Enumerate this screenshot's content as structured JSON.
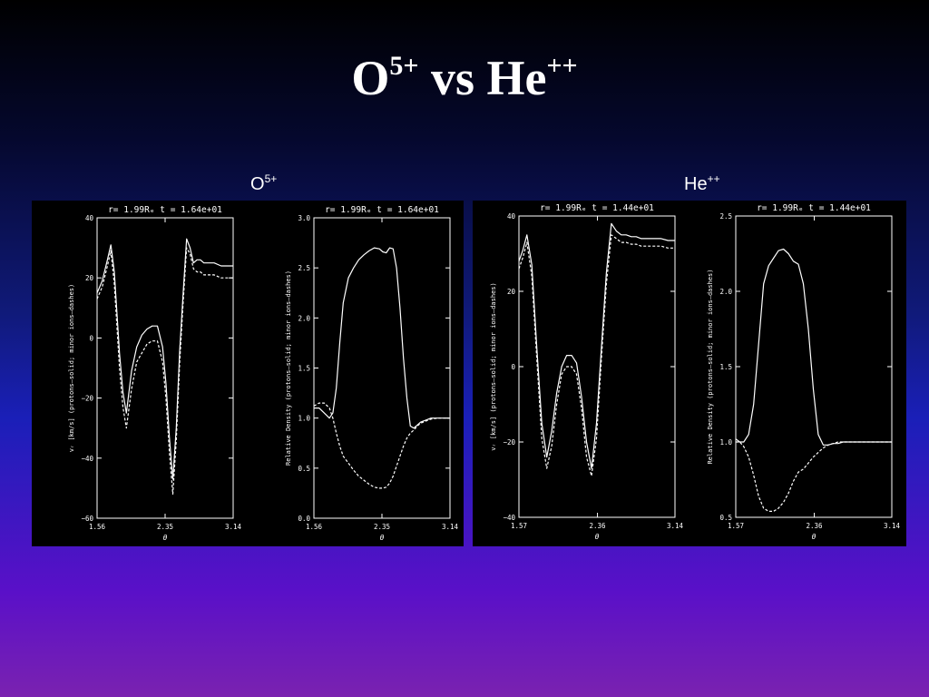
{
  "slide": {
    "title_main_1": "O",
    "title_sup_1": "5+",
    "title_mid": " vs He",
    "title_sup_2": "++"
  },
  "labels": {
    "left_base": "O",
    "left_sup": "5+",
    "right_base": "He",
    "right_sup": "++"
  },
  "colors": {
    "line": "#ffffff",
    "panel_bg": "#000000"
  },
  "chart_data": [
    {
      "type": "line",
      "title": "r=  1.99Rₑ  t = 1.64e+01",
      "xlabel": "θ",
      "ylabel": "vᵣ [km/s] (protons–solid; minor ions–dashes)",
      "xlim": [
        1.56,
        3.14
      ],
      "ylim": [
        -60,
        40
      ],
      "xticks": [
        1.56,
        2.35,
        3.14
      ],
      "xtick_labels": [
        "1.56",
        "2.35",
        "3.14"
      ],
      "yticks": [
        -60,
        -40,
        -20,
        0,
        20,
        40
      ],
      "ytick_labels": [
        "−60",
        "−40",
        "−20",
        "0",
        "20",
        "40"
      ],
      "series": [
        {
          "style": "solid",
          "x": [
            1.56,
            1.62,
            1.68,
            1.72,
            1.76,
            1.82,
            1.86,
            1.9,
            1.96,
            2.02,
            2.08,
            2.14,
            2.2,
            2.26,
            2.32,
            2.36,
            2.4,
            2.44,
            2.48,
            2.52,
            2.56,
            2.6,
            2.64,
            2.68,
            2.72,
            2.76,
            2.8,
            2.86,
            2.92,
            3.0,
            3.08,
            3.14
          ],
          "y": [
            15,
            19,
            26,
            31,
            22,
            -5,
            -18,
            -25,
            -11,
            -3,
            1,
            3,
            4,
            4,
            -3,
            -15,
            -33,
            -47,
            -30,
            -4,
            15,
            33,
            30,
            25,
            26,
            26,
            25,
            25,
            25,
            24,
            24,
            24
          ]
        },
        {
          "style": "dashed",
          "x": [
            1.56,
            1.62,
            1.68,
            1.72,
            1.76,
            1.82,
            1.86,
            1.9,
            1.96,
            2.02,
            2.08,
            2.14,
            2.2,
            2.26,
            2.32,
            2.36,
            2.4,
            2.44,
            2.48,
            2.52,
            2.56,
            2.6,
            2.64,
            2.68,
            2.72,
            2.76,
            2.8,
            2.86,
            2.92,
            3.0,
            3.08,
            3.14
          ],
          "y": [
            13,
            17,
            24,
            29,
            18,
            -10,
            -23,
            -30,
            -17,
            -8,
            -5,
            -2,
            -1,
            -1,
            -8,
            -20,
            -38,
            -52,
            -34,
            -8,
            12,
            30,
            28,
            23,
            22,
            22,
            21,
            21,
            21,
            20,
            20,
            20
          ]
        }
      ]
    },
    {
      "type": "line",
      "title": "r=  1.99Rₑ  t = 1.64e+01",
      "xlabel": "θ",
      "ylabel": "Relative Density (protons–solid; minor ions–dashes)",
      "xlim": [
        1.56,
        3.14
      ],
      "ylim": [
        0.0,
        3.0
      ],
      "xticks": [
        1.56,
        2.35,
        3.14
      ],
      "xtick_labels": [
        "1.56",
        "2.35",
        "3.14"
      ],
      "yticks": [
        0.0,
        0.5,
        1.0,
        1.5,
        2.0,
        2.5,
        3.0
      ],
      "ytick_labels": [
        "0.0",
        "0.5",
        "1.0",
        "1.5",
        "2.0",
        "2.5",
        "3.0"
      ],
      "series": [
        {
          "style": "solid",
          "x": [
            1.56,
            1.62,
            1.68,
            1.74,
            1.78,
            1.82,
            1.86,
            1.9,
            1.96,
            2.02,
            2.08,
            2.14,
            2.2,
            2.26,
            2.32,
            2.36,
            2.4,
            2.44,
            2.48,
            2.52,
            2.56,
            2.6,
            2.64,
            2.68,
            2.72,
            2.76,
            2.8,
            2.86,
            2.92,
            3.0,
            3.08,
            3.14
          ],
          "y": [
            1.1,
            1.1,
            1.05,
            1.0,
            1.05,
            1.3,
            1.75,
            2.15,
            2.4,
            2.5,
            2.58,
            2.63,
            2.67,
            2.7,
            2.69,
            2.66,
            2.65,
            2.7,
            2.69,
            2.5,
            2.1,
            1.6,
            1.2,
            0.92,
            0.9,
            0.93,
            0.96,
            0.98,
            1.0,
            1.0,
            1.0,
            1.0
          ]
        },
        {
          "style": "dashed",
          "x": [
            1.56,
            1.62,
            1.68,
            1.74,
            1.78,
            1.82,
            1.86,
            1.9,
            1.96,
            2.02,
            2.08,
            2.14,
            2.2,
            2.26,
            2.32,
            2.36,
            2.4,
            2.44,
            2.48,
            2.52,
            2.56,
            2.6,
            2.64,
            2.68,
            2.72,
            2.76,
            2.8,
            2.86,
            2.92,
            3.0,
            3.08,
            3.14
          ],
          "y": [
            1.12,
            1.15,
            1.15,
            1.1,
            1.0,
            0.85,
            0.72,
            0.62,
            0.55,
            0.48,
            0.42,
            0.38,
            0.34,
            0.31,
            0.3,
            0.3,
            0.31,
            0.35,
            0.42,
            0.52,
            0.62,
            0.72,
            0.8,
            0.85,
            0.88,
            0.92,
            0.95,
            0.97,
            0.99,
            1.0,
            1.0,
            1.0
          ]
        }
      ]
    },
    {
      "type": "line",
      "title": "r=  1.99Rₑ  t = 1.44e+01",
      "xlabel": "θ",
      "ylabel": "vᵣ [km/s] (protons–solid; minor ions–dashes)",
      "xlim": [
        1.57,
        3.14
      ],
      "ylim": [
        -40,
        40
      ],
      "xticks": [
        1.57,
        2.36,
        3.14
      ],
      "xtick_labels": [
        "1.57",
        "2.36",
        "3.14"
      ],
      "yticks": [
        -40,
        -20,
        0,
        20,
        40
      ],
      "ytick_labels": [
        "−40",
        "−20",
        "0",
        "20",
        "40"
      ],
      "series": [
        {
          "style": "solid",
          "x": [
            1.57,
            1.61,
            1.65,
            1.7,
            1.75,
            1.8,
            1.85,
            1.9,
            1.95,
            2.0,
            2.05,
            2.1,
            2.15,
            2.2,
            2.25,
            2.3,
            2.35,
            2.4,
            2.45,
            2.5,
            2.55,
            2.6,
            2.65,
            2.7,
            2.75,
            2.8,
            2.85,
            2.9,
            2.95,
            3.0,
            3.07,
            3.14
          ],
          "y": [
            28,
            31,
            35,
            27,
            5,
            -15,
            -24,
            -17,
            -7,
            0,
            3,
            3,
            1,
            -8,
            -20,
            -27,
            -15,
            5,
            25,
            38,
            36,
            35,
            35,
            34.5,
            34.5,
            34,
            34,
            34,
            34,
            34,
            33.5,
            33.5
          ]
        },
        {
          "style": "dashed",
          "x": [
            1.57,
            1.61,
            1.65,
            1.7,
            1.75,
            1.8,
            1.85,
            1.9,
            1.95,
            2.0,
            2.05,
            2.1,
            2.15,
            2.2,
            2.25,
            2.3,
            2.35,
            2.4,
            2.45,
            2.5,
            2.55,
            2.6,
            2.65,
            2.7,
            2.75,
            2.8,
            2.85,
            2.9,
            2.95,
            3.0,
            3.07,
            3.14
          ],
          "y": [
            26,
            29,
            33,
            24,
            2,
            -19,
            -27,
            -21,
            -10,
            -2,
            0,
            0,
            -2,
            -11,
            -24,
            -29,
            -19,
            2,
            22,
            35,
            34,
            33,
            33,
            32.5,
            32.5,
            32,
            32,
            32,
            32,
            32,
            31.5,
            31.5
          ]
        }
      ]
    },
    {
      "type": "line",
      "title": "r=  1.99Rₑ  t = 1.44e+01",
      "xlabel": "θ",
      "ylabel": "Relative Density (protons–solid; minor ions–dashes)",
      "xlim": [
        1.57,
        3.14
      ],
      "ylim": [
        0.5,
        2.5
      ],
      "xticks": [
        1.57,
        2.36,
        3.14
      ],
      "xtick_labels": [
        "1.57",
        "2.36",
        "3.14"
      ],
      "yticks": [
        0.5,
        1.0,
        1.5,
        2.0,
        2.5
      ],
      "ytick_labels": [
        "0.5",
        "1.0",
        "1.5",
        "2.0",
        "2.5"
      ],
      "series": [
        {
          "style": "solid",
          "x": [
            1.57,
            1.61,
            1.65,
            1.7,
            1.75,
            1.8,
            1.85,
            1.9,
            1.95,
            2.0,
            2.05,
            2.1,
            2.15,
            2.2,
            2.25,
            2.3,
            2.35,
            2.4,
            2.45,
            2.5,
            2.55,
            2.6,
            2.65,
            2.7,
            2.75,
            2.8,
            2.85,
            2.9,
            2.95,
            3.0,
            3.07,
            3.14
          ],
          "y": [
            1.02,
            1.0,
            1.0,
            1.05,
            1.25,
            1.65,
            2.05,
            2.17,
            2.22,
            2.27,
            2.28,
            2.25,
            2.2,
            2.18,
            2.05,
            1.75,
            1.35,
            1.05,
            0.98,
            0.98,
            0.99,
            0.99,
            1.0,
            1.0,
            1.0,
            1.0,
            1.0,
            1.0,
            1.0,
            1.0,
            1.0,
            1.0
          ]
        },
        {
          "style": "dashed",
          "x": [
            1.57,
            1.61,
            1.65,
            1.7,
            1.75,
            1.8,
            1.85,
            1.9,
            1.95,
            2.0,
            2.05,
            2.1,
            2.15,
            2.2,
            2.25,
            2.3,
            2.35,
            2.4,
            2.45,
            2.5,
            2.55,
            2.6,
            2.65,
            2.7,
            2.75,
            2.8,
            2.85,
            2.9,
            2.95,
            3.0,
            3.07,
            3.14
          ],
          "y": [
            1.0,
            1.0,
            0.97,
            0.9,
            0.78,
            0.64,
            0.56,
            0.54,
            0.54,
            0.56,
            0.6,
            0.66,
            0.74,
            0.8,
            0.82,
            0.86,
            0.9,
            0.93,
            0.96,
            0.98,
            0.99,
            1.0,
            1.0,
            1.0,
            1.0,
            1.0,
            1.0,
            1.0,
            1.0,
            1.0,
            1.0,
            1.0
          ]
        }
      ]
    }
  ]
}
